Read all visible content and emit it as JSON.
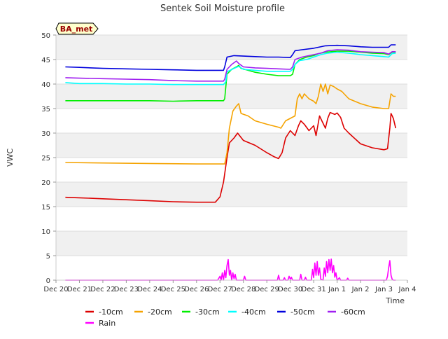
{
  "chart_data": {
    "type": "line",
    "title": "Sentek Soil Moisture profile",
    "xlabel": "Time",
    "ylabel": "VWC",
    "annotation": "BA_met",
    "xlim": [
      0,
      15
    ],
    "ylim": [
      0,
      50
    ],
    "yticks": [
      0,
      5,
      10,
      15,
      20,
      25,
      30,
      35,
      40,
      45,
      50
    ],
    "x_tick_values": [
      0,
      1,
      2,
      3,
      4,
      5,
      6,
      7,
      8,
      9,
      10,
      11,
      12,
      13,
      14,
      15
    ],
    "x_tick_labels": [
      "Dec 20",
      "Dec 21",
      "Dec 22",
      "Dec 23",
      "Dec 24",
      "Dec 25",
      "Dec 26",
      "Dec 27",
      "Dec 28",
      "Dec 29",
      "Dec 30",
      "Dec 31",
      "Jan 1",
      "Jan 2",
      "Jan 3",
      "Jan 4"
    ],
    "grid": "horizontal bands",
    "legend_position": "bottom",
    "series": [
      {
        "name": "-10cm",
        "color": "#dd0000",
        "points": [
          [
            0.4,
            16.9
          ],
          [
            1.0,
            16.8
          ],
          [
            2.0,
            16.6
          ],
          [
            3.0,
            16.4
          ],
          [
            4.0,
            16.2
          ],
          [
            5.0,
            16.0
          ],
          [
            6.0,
            15.9
          ],
          [
            6.8,
            15.9
          ],
          [
            7.0,
            17
          ],
          [
            7.15,
            20
          ],
          [
            7.3,
            25
          ],
          [
            7.4,
            28
          ],
          [
            7.6,
            29
          ],
          [
            7.75,
            30
          ],
          [
            8.0,
            28.5
          ],
          [
            8.5,
            27.5
          ],
          [
            9.0,
            26
          ],
          [
            9.3,
            25.2
          ],
          [
            9.5,
            24.8
          ],
          [
            9.65,
            26
          ],
          [
            9.8,
            29
          ],
          [
            10.0,
            30.5
          ],
          [
            10.2,
            29.5
          ],
          [
            10.35,
            31.5
          ],
          [
            10.45,
            32.5
          ],
          [
            10.6,
            31.8
          ],
          [
            10.8,
            30.5
          ],
          [
            11.0,
            31.5
          ],
          [
            11.1,
            29.5
          ],
          [
            11.25,
            33.5
          ],
          [
            11.35,
            32.5
          ],
          [
            11.5,
            31
          ],
          [
            11.6,
            33
          ],
          [
            11.7,
            34.2
          ],
          [
            11.9,
            33.8
          ],
          [
            12.0,
            34.1
          ],
          [
            12.15,
            33.2
          ],
          [
            12.3,
            31
          ],
          [
            12.5,
            30
          ],
          [
            13.0,
            27.8
          ],
          [
            13.5,
            27
          ],
          [
            14.0,
            26.6
          ],
          [
            14.15,
            26.8
          ],
          [
            14.25,
            31
          ],
          [
            14.3,
            34
          ],
          [
            14.4,
            33
          ],
          [
            14.5,
            31
          ]
        ]
      },
      {
        "name": "-20cm",
        "color": "#f5a300",
        "points": [
          [
            0.4,
            24.0
          ],
          [
            2.0,
            23.9
          ],
          [
            4.0,
            23.8
          ],
          [
            6.0,
            23.7
          ],
          [
            7.2,
            23.7
          ],
          [
            7.3,
            26
          ],
          [
            7.4,
            31
          ],
          [
            7.55,
            34.5
          ],
          [
            7.7,
            35.5
          ],
          [
            7.8,
            36
          ],
          [
            7.9,
            34
          ],
          [
            8.2,
            33.5
          ],
          [
            8.5,
            32.5
          ],
          [
            9.0,
            31.8
          ],
          [
            9.5,
            31.2
          ],
          [
            9.6,
            31
          ],
          [
            9.8,
            32.5
          ],
          [
            10.0,
            33
          ],
          [
            10.2,
            33.5
          ],
          [
            10.3,
            37
          ],
          [
            10.4,
            38
          ],
          [
            10.5,
            37
          ],
          [
            10.6,
            38
          ],
          [
            10.8,
            37
          ],
          [
            11.0,
            36.5
          ],
          [
            11.1,
            36
          ],
          [
            11.2,
            37.5
          ],
          [
            11.3,
            40
          ],
          [
            11.4,
            38.5
          ],
          [
            11.5,
            40
          ],
          [
            11.6,
            38
          ],
          [
            11.7,
            39.8
          ],
          [
            11.85,
            39.5
          ],
          [
            12.0,
            39
          ],
          [
            12.2,
            38.5
          ],
          [
            12.5,
            37
          ],
          [
            13.0,
            36
          ],
          [
            13.5,
            35.3
          ],
          [
            14.0,
            35.0
          ],
          [
            14.2,
            35
          ],
          [
            14.3,
            38
          ],
          [
            14.4,
            37.5
          ],
          [
            14.5,
            37.5
          ]
        ]
      },
      {
        "name": "-30cm",
        "color": "#00ee00",
        "points": [
          [
            0.4,
            36.6
          ],
          [
            2.0,
            36.6
          ],
          [
            4.0,
            36.6
          ],
          [
            5.0,
            36.5
          ],
          [
            6.0,
            36.6
          ],
          [
            7.15,
            36.6
          ],
          [
            7.2,
            37
          ],
          [
            7.3,
            42
          ],
          [
            7.5,
            43
          ],
          [
            7.7,
            43.5
          ],
          [
            7.8,
            43.8
          ],
          [
            7.9,
            43.2
          ],
          [
            8.2,
            42.8
          ],
          [
            8.5,
            42.4
          ],
          [
            9.0,
            42
          ],
          [
            9.5,
            41.7
          ],
          [
            10.0,
            41.7
          ],
          [
            10.1,
            42
          ],
          [
            10.2,
            44
          ],
          [
            10.4,
            45
          ],
          [
            10.7,
            45.5
          ],
          [
            11.0,
            45.8
          ],
          [
            11.2,
            46.2
          ],
          [
            11.5,
            46.5
          ],
          [
            12.0,
            46.7
          ],
          [
            12.5,
            46.7
          ],
          [
            13.0,
            46.5
          ],
          [
            13.5,
            46.3
          ],
          [
            14.0,
            46.2
          ],
          [
            14.2,
            46
          ],
          [
            14.35,
            46.5
          ],
          [
            14.5,
            46.5
          ]
        ]
      },
      {
        "name": "-40cm",
        "color": "#00ffff",
        "points": [
          [
            0.4,
            40.3
          ],
          [
            1.0,
            40.1
          ],
          [
            2.0,
            40.1
          ],
          [
            3.0,
            40.0
          ],
          [
            4.0,
            40.0
          ],
          [
            5.0,
            39.9
          ],
          [
            6.0,
            39.9
          ],
          [
            7.15,
            39.9
          ],
          [
            7.25,
            40.5
          ],
          [
            7.3,
            42.5
          ],
          [
            7.6,
            43.2
          ],
          [
            7.8,
            43.6
          ],
          [
            8.0,
            43.0
          ],
          [
            8.5,
            42.8
          ],
          [
            9.0,
            42.6
          ],
          [
            9.5,
            42.6
          ],
          [
            10.0,
            42.6
          ],
          [
            10.1,
            43
          ],
          [
            10.2,
            44
          ],
          [
            10.4,
            44.8
          ],
          [
            10.7,
            45
          ],
          [
            11.0,
            45.5
          ],
          [
            11.3,
            46
          ],
          [
            11.6,
            46.3
          ],
          [
            12.0,
            46.5
          ],
          [
            12.5,
            46.3
          ],
          [
            13.0,
            46.0
          ],
          [
            13.5,
            45.8
          ],
          [
            14.0,
            45.6
          ],
          [
            14.2,
            45.5
          ],
          [
            14.35,
            46.2
          ],
          [
            14.5,
            46.3
          ]
        ]
      },
      {
        "name": "-50cm",
        "color": "#0000dd",
        "points": [
          [
            0.4,
            43.5
          ],
          [
            1.0,
            43.4
          ],
          [
            2.0,
            43.2
          ],
          [
            3.0,
            43.1
          ],
          [
            4.0,
            43.0
          ],
          [
            5.0,
            42.9
          ],
          [
            6.0,
            42.8
          ],
          [
            7.15,
            42.8
          ],
          [
            7.2,
            43.5
          ],
          [
            7.3,
            45.5
          ],
          [
            7.6,
            45.8
          ],
          [
            8.0,
            45.7
          ],
          [
            8.5,
            45.6
          ],
          [
            9.0,
            45.5
          ],
          [
            9.5,
            45.5
          ],
          [
            10.0,
            45.4
          ],
          [
            10.1,
            46
          ],
          [
            10.2,
            46.8
          ],
          [
            10.5,
            47
          ],
          [
            11.0,
            47.3
          ],
          [
            11.5,
            47.8
          ],
          [
            12.0,
            47.9
          ],
          [
            12.5,
            47.8
          ],
          [
            13.0,
            47.6
          ],
          [
            13.5,
            47.5
          ],
          [
            14.0,
            47.5
          ],
          [
            14.2,
            47.5
          ],
          [
            14.3,
            48.0
          ],
          [
            14.5,
            48.0
          ]
        ]
      },
      {
        "name": "-60cm",
        "color": "#a020f0",
        "points": [
          [
            0.4,
            41.3
          ],
          [
            1.0,
            41.2
          ],
          [
            2.0,
            41.1
          ],
          [
            3.0,
            41.0
          ],
          [
            4.0,
            40.9
          ],
          [
            5.0,
            40.7
          ],
          [
            6.0,
            40.6
          ],
          [
            7.15,
            40.6
          ],
          [
            7.2,
            41
          ],
          [
            7.3,
            43
          ],
          [
            7.5,
            44
          ],
          [
            7.7,
            44.7
          ],
          [
            7.8,
            44.2
          ],
          [
            8.0,
            43.5
          ],
          [
            8.5,
            43.3
          ],
          [
            9.0,
            43.2
          ],
          [
            9.5,
            43.1
          ],
          [
            10.0,
            43.0
          ],
          [
            10.1,
            43.5
          ],
          [
            10.2,
            45
          ],
          [
            10.5,
            45.5
          ],
          [
            11.0,
            46
          ],
          [
            11.3,
            46.3
          ],
          [
            11.6,
            46.8
          ],
          [
            12.0,
            47.0
          ],
          [
            12.5,
            46.9
          ],
          [
            13.0,
            46.6
          ],
          [
            13.5,
            46.5
          ],
          [
            14.0,
            46.4
          ],
          [
            14.2,
            46.1
          ],
          [
            14.35,
            46.6
          ],
          [
            14.5,
            46.6
          ]
        ]
      },
      {
        "name": "Rain",
        "color": "#ff00ff",
        "points": [
          [
            0.4,
            0
          ],
          [
            6.9,
            0
          ],
          [
            7.0,
            0.8
          ],
          [
            7.05,
            0
          ],
          [
            7.1,
            1.5
          ],
          [
            7.15,
            0
          ],
          [
            7.2,
            2
          ],
          [
            7.25,
            0.5
          ],
          [
            7.3,
            3
          ],
          [
            7.35,
            4.2
          ],
          [
            7.4,
            1
          ],
          [
            7.45,
            2
          ],
          [
            7.5,
            0
          ],
          [
            7.55,
            1.5
          ],
          [
            7.6,
            0.3
          ],
          [
            7.65,
            1.2
          ],
          [
            7.7,
            0
          ],
          [
            8.0,
            0
          ],
          [
            8.05,
            0.8
          ],
          [
            8.1,
            0
          ],
          [
            9.45,
            0
          ],
          [
            9.5,
            1.0
          ],
          [
            9.55,
            0
          ],
          [
            9.7,
            0
          ],
          [
            9.75,
            0.5
          ],
          [
            9.8,
            0
          ],
          [
            9.9,
            0
          ],
          [
            9.95,
            0.8
          ],
          [
            10.0,
            0.2
          ],
          [
            10.05,
            0.6
          ],
          [
            10.1,
            0
          ],
          [
            10.4,
            0
          ],
          [
            10.45,
            1.2
          ],
          [
            10.5,
            0
          ],
          [
            10.6,
            0
          ],
          [
            10.65,
            0.6
          ],
          [
            10.7,
            0
          ],
          [
            10.9,
            0
          ],
          [
            10.95,
            2.2
          ],
          [
            11.0,
            0.5
          ],
          [
            11.05,
            3.5
          ],
          [
            11.1,
            1
          ],
          [
            11.15,
            3.8
          ],
          [
            11.2,
            1
          ],
          [
            11.25,
            2.5
          ],
          [
            11.3,
            0.2
          ],
          [
            11.4,
            0
          ],
          [
            11.45,
            2.5
          ],
          [
            11.5,
            0.8
          ],
          [
            11.55,
            3.8
          ],
          [
            11.6,
            1.5
          ],
          [
            11.65,
            4.2
          ],
          [
            11.7,
            2
          ],
          [
            11.75,
            4.3
          ],
          [
            11.8,
            1.5
          ],
          [
            11.85,
            3
          ],
          [
            11.9,
            0.6
          ],
          [
            11.95,
            1.5
          ],
          [
            12.0,
            0
          ],
          [
            12.1,
            0.5
          ],
          [
            12.15,
            0
          ],
          [
            12.4,
            0
          ],
          [
            12.45,
            0.4
          ],
          [
            12.5,
            0
          ],
          [
            14.1,
            0
          ],
          [
            14.15,
            0.8
          ],
          [
            14.2,
            2.5
          ],
          [
            14.25,
            4.0
          ],
          [
            14.3,
            1
          ],
          [
            14.35,
            0.2
          ],
          [
            14.4,
            0
          ],
          [
            14.5,
            0
          ]
        ]
      }
    ]
  }
}
